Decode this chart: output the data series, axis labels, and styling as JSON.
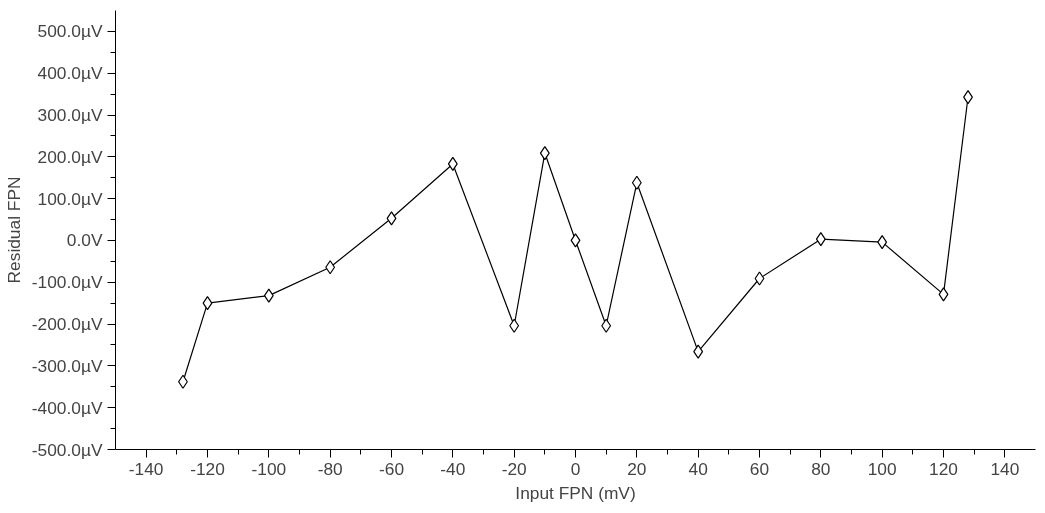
{
  "chart_data": {
    "type": "line",
    "xlabel": "Input FPN (mV)",
    "ylabel": "Residual FPN",
    "x": [
      -128,
      -120,
      -100,
      -80,
      -60,
      -40,
      -20,
      -10,
      0,
      10,
      20,
      40,
      60,
      80,
      100,
      120,
      128
    ],
    "series": [
      {
        "color": "#000000",
        "values": [
          -338,
          -150,
          -132,
          -64,
          53,
          183,
          -204,
          209,
          0,
          -204,
          138,
          -266,
          -91,
          3,
          -4,
          -129,
          343
        ]
      }
    ],
    "xlim": [
      -150,
      150
    ],
    "ylim": [
      -500,
      550
    ],
    "xticks": [
      -140,
      -120,
      -100,
      -80,
      -60,
      -40,
      -20,
      0,
      20,
      40,
      60,
      80,
      100,
      120,
      140
    ],
    "yticks": [
      {
        "value": -500,
        "label": "-500.0µV"
      },
      {
        "value": -400,
        "label": "-400.0µV"
      },
      {
        "value": -300,
        "label": "-300.0µV"
      },
      {
        "value": -200,
        "label": "-200.0µV"
      },
      {
        "value": -100,
        "label": "-100.0µV"
      },
      {
        "value": 0,
        "label": "0.0V"
      },
      {
        "value": 100,
        "label": "100.0µV"
      },
      {
        "value": 200,
        "label": "200.0µV"
      },
      {
        "value": 300,
        "label": "300.0µV"
      },
      {
        "value": 400,
        "label": "400.0µV"
      },
      {
        "value": 500,
        "label": "500.0µV"
      }
    ],
    "marker": "diamond",
    "line_style": "solid",
    "grid": false
  }
}
